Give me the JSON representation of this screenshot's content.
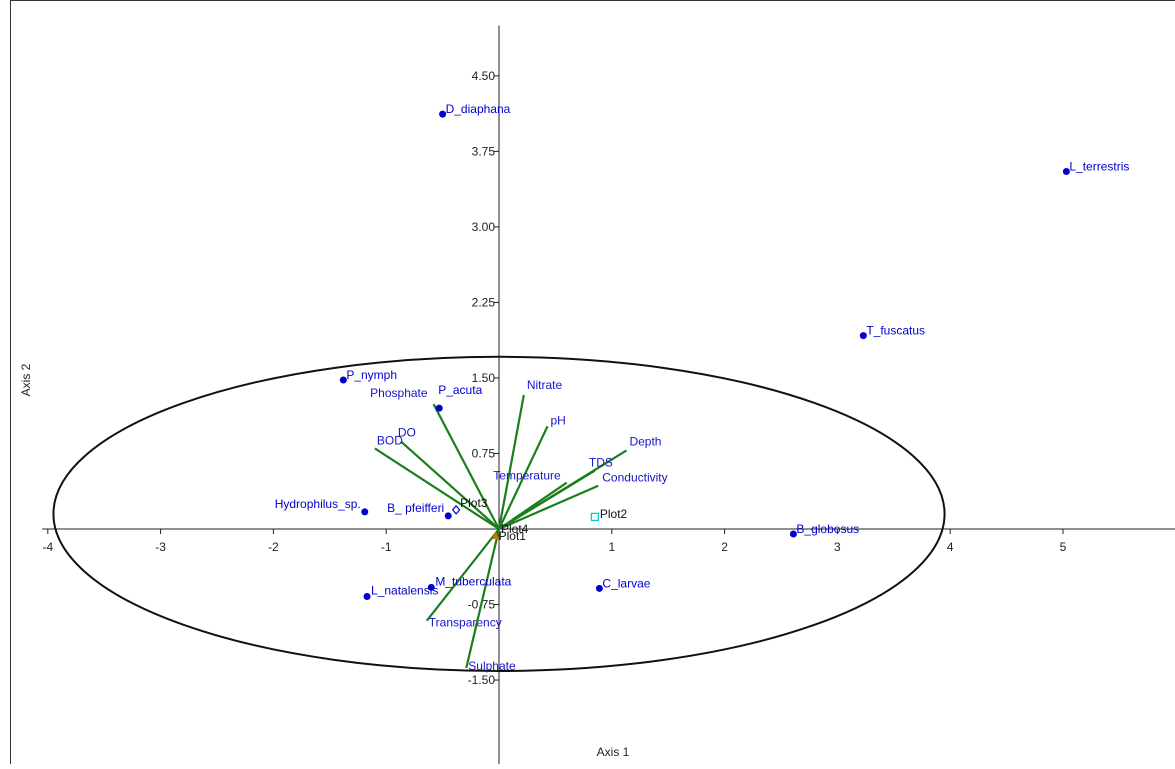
{
  "chart_data": {
    "type": "scatter",
    "title": "",
    "xlabel": "Axis 1",
    "ylabel": "Axis 2",
    "xlim": [
      -4.05,
      6.05
    ],
    "ylim": [
      -1.75,
      5.0
    ],
    "x_ticks": [
      -4,
      -3,
      -2,
      -1,
      1,
      2,
      3,
      4,
      5
    ],
    "x_tick_labels": [
      "-4",
      "-3",
      "-2",
      "-1",
      "1",
      "2",
      "3",
      "4",
      "5"
    ],
    "y_ticks": [
      4.5,
      3.75,
      3.0,
      2.25,
      1.5,
      0.75,
      -0.75,
      -1.5
    ],
    "y_tick_labels": [
      "4.50",
      "3.75",
      "3.00",
      "2.25",
      "1.50",
      "0.75",
      "-0.75",
      "-1.50"
    ],
    "series": [
      {
        "name": "",
        "kind": "species",
        "color": "#0000cc",
        "points": [
          {
            "label": "D_diaphana",
            "x": -0.5,
            "y": 4.12
          },
          {
            "label": "L_terrestris",
            "x": 5.03,
            "y": 3.55
          },
          {
            "label": "T_fuscatus",
            "x": 3.23,
            "y": 1.92
          },
          {
            "label": "P_nymph",
            "x": -1.38,
            "y": 1.48
          },
          {
            "label": "P_acuta",
            "x": -0.53,
            "y": 1.2
          },
          {
            "label": "Hydrophilus_sp.",
            "x": -1.19,
            "y": 0.17
          },
          {
            "label": "B_ pfeifferi",
            "x": -0.45,
            "y": 0.13
          },
          {
            "label": "B_globosus",
            "x": 2.61,
            "y": -0.05
          },
          {
            "label": "C_larvae",
            "x": 0.89,
            "y": -0.59
          },
          {
            "label": "M_tuberculata",
            "x": -0.6,
            "y": -0.58
          },
          {
            "label": "L_natalensis",
            "x": -1.17,
            "y": -0.67
          }
        ]
      },
      {
        "name": "",
        "kind": "sites",
        "points": [
          {
            "label": "Plot3",
            "x": -0.38,
            "y": 0.19,
            "marker": "diamond",
            "color": "#0000cc"
          },
          {
            "label": "Plot2",
            "x": 0.85,
            "y": 0.12,
            "marker": "square",
            "color": "#00cccc"
          },
          {
            "label": "Plot4",
            "x": 0.0,
            "y": 0.0,
            "marker": "none",
            "color": "#111111"
          },
          {
            "label": "Plot1",
            "x": -0.03,
            "y": -0.07,
            "marker": "triangle",
            "color": "#cc7700"
          }
        ]
      },
      {
        "name": "",
        "kind": "vectors",
        "color": "#1a7f1a",
        "vectors": [
          {
            "label": "Phosphate",
            "x": -0.58,
            "y": 1.24
          },
          {
            "label": "Nitrate",
            "x": 0.22,
            "y": 1.33
          },
          {
            "label": "pH",
            "x": 0.43,
            "y": 1.02
          },
          {
            "label": "DO",
            "x": -0.87,
            "y": 0.87
          },
          {
            "label": "BOD",
            "x": -1.1,
            "y": 0.8
          },
          {
            "label": "Depth",
            "x": 1.13,
            "y": 0.78
          },
          {
            "label": "TDS",
            "x": 0.85,
            "y": 0.58
          },
          {
            "label": "Temperature",
            "x": 0.6,
            "y": 0.46
          },
          {
            "label": "Conductivity",
            "x": 0.88,
            "y": 0.43
          },
          {
            "label": "Transparency",
            "x": -0.64,
            "y": -0.91
          },
          {
            "label": "Sulphate",
            "x": -0.29,
            "y": -1.38
          }
        ]
      }
    ],
    "ellipse": {
      "cx": 0.0,
      "cy": 0.15,
      "rx": 3.95,
      "ry": 1.56,
      "stroke": "#111111"
    }
  }
}
